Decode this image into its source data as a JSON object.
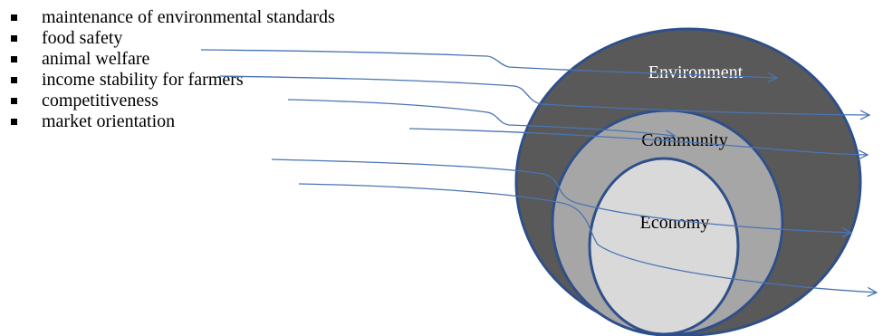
{
  "bullets": [
    "maintenance of environmental standards",
    "food safety",
    "animal welfare",
    "income stability for farmers",
    "competitiveness",
    "market orientation"
  ],
  "rings": {
    "outer": {
      "label": "Environment",
      "fill": "#595959",
      "text_color": "#ffffff"
    },
    "middle": {
      "label": "Community",
      "fill": "#a6a6a6",
      "text_color": "#000000"
    },
    "inner": {
      "label": "Economy",
      "fill": "#d9d9d9",
      "text_color": "#000000"
    }
  },
  "colors": {
    "ring_stroke": "#2f4f8a",
    "arrow": "#4a74b4",
    "bullet_marker": "#000000"
  }
}
